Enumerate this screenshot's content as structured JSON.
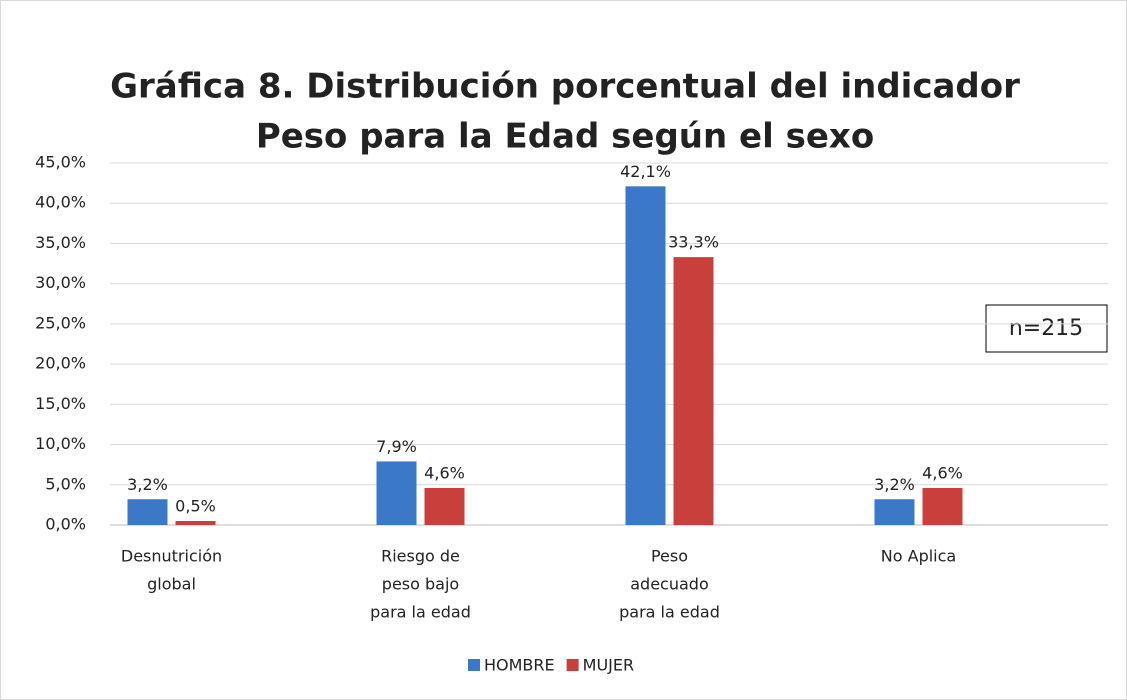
{
  "chart_data": {
    "type": "bar",
    "title": [
      "Gráfica 8. Distribución porcentual del indicador",
      "Peso para la Edad según el sexo"
    ],
    "categories": [
      [
        "Desnutrición",
        "global"
      ],
      [
        "Riesgo de",
        "peso bajo",
        "para la edad"
      ],
      [
        "Peso",
        "adecuado",
        "para la edad"
      ],
      [
        "No Aplica"
      ]
    ],
    "series": [
      {
        "name": "HOMBRE",
        "color": "#3b78c8",
        "values": [
          3.2,
          7.9,
          42.1,
          3.2
        ],
        "value_labels": [
          "3,2%",
          "7,9%",
          "42,1%",
          "3,2%"
        ]
      },
      {
        "name": "MUJER",
        "color": "#c93f3c",
        "values": [
          0.5,
          4.6,
          33.3,
          4.6
        ],
        "value_labels": [
          "0,5%",
          "4,6%",
          "33,3%",
          "4,6%"
        ]
      }
    ],
    "ylim": [
      0,
      45
    ],
    "yticks": [
      {
        "value": 0,
        "label": "0,0%"
      },
      {
        "value": 5,
        "label": "5,0%"
      },
      {
        "value": 10,
        "label": "10,0%"
      },
      {
        "value": 15,
        "label": "15,0%"
      },
      {
        "value": 20,
        "label": "20,0%"
      },
      {
        "value": 25,
        "label": "25,0%"
      },
      {
        "value": 30,
        "label": "30,0%"
      },
      {
        "value": 35,
        "label": "35,0%"
      },
      {
        "value": 40,
        "label": "40,0%"
      },
      {
        "value": 45,
        "label": "45,0%"
      }
    ],
    "grid": true,
    "legend": "bottom",
    "annotation": "n=215"
  }
}
